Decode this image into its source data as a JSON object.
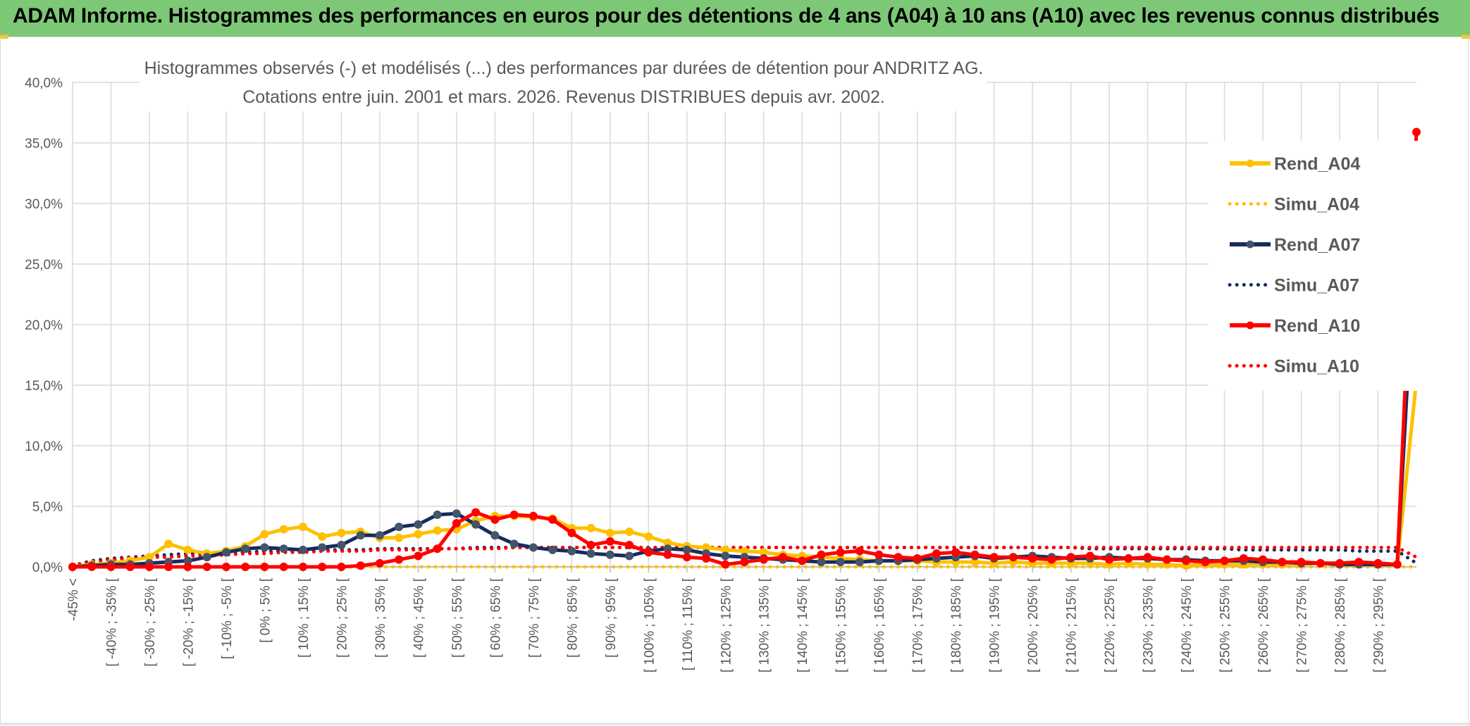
{
  "header": {
    "title": "ADAM Informe. Histogrammes des performances en euros pour des détentions de 4 ans (A04) à 10 ans (A10) avec les revenus connus distribués"
  },
  "chart_data": {
    "type": "line",
    "title_line1": "Histogrammes observés (-) et modélisés (...) des performances par durées de détention pour ANDRITZ AG.",
    "title_line2": "Cotations entre juin. 2001 et mars. 2026. Revenus DISTRIBUES depuis avr. 2002.",
    "ylim": [
      0,
      40
    ],
    "yticks": [
      "0,0%",
      "5,0%",
      "10,0%",
      "15,0%",
      "20,0%",
      "25,0%",
      "30,0%",
      "35,0%",
      "40,0%"
    ],
    "xlabels": [
      "-45% <",
      "[ -40% ; -35% [",
      "[ -30% ; -25% [",
      "[ -20% ; -15% [",
      "[ -10% ; -5% [",
      "[ 0% ; 5% [",
      "[ 10% ; 15% [",
      "[ 20% ; 25% [",
      "[ 30% ; 35% [",
      "[ 40% ; 45% [",
      "[ 50% ; 55% [",
      "[ 60% ; 65% [",
      "[ 70% ; 75% [",
      "[ 80% ; 85% [",
      "[ 90% ; 95% [",
      "[ 100% ; 105% [",
      "[ 110% ; 115% [",
      "[ 120% ; 125% [",
      "[ 130% ; 135% [",
      "[ 140% ; 145% [",
      "[ 150% ; 155% [",
      "[ 160% ; 165% [",
      "[ 170% ; 175% [",
      "[ 180% ; 185% [",
      "[ 190% ; 195% [",
      "[ 200% ; 205% [",
      "[ 210% ; 215% [",
      "[ 220% ; 225% [",
      "[ 230% ; 235% [",
      "[ 240% ; 245% [",
      "[ 250% ; 255% [",
      "[ 260% ; 265% [",
      "[ 270% ; 275% [",
      "[ 280% ; 285% [",
      "[ 290% ; 295% ["
    ],
    "categories_count": 71,
    "legend": [
      "Rend_A04",
      "Simu_A04",
      "Rend_A07",
      "Simu_A07",
      "Rend_A10",
      "Simu_A10"
    ],
    "series": [
      {
        "name": "Rend_A04",
        "style": "solid",
        "markers": true,
        "color": "#ffc000",
        "values": [
          0.0,
          0.2,
          0.3,
          0.5,
          0.8,
          1.9,
          1.4,
          1.1,
          1.3,
          1.7,
          2.7,
          3.1,
          3.3,
          2.5,
          2.8,
          2.9,
          2.4,
          2.4,
          2.7,
          3.0,
          3.1,
          3.8,
          4.2,
          4.2,
          4.1,
          4.0,
          3.2,
          3.2,
          2.8,
          2.9,
          2.5,
          2.0,
          1.7,
          1.6,
          1.4,
          1.3,
          1.2,
          1.0,
          0.9,
          0.8,
          0.7,
          0.6,
          0.5,
          0.5,
          0.5,
          0.4,
          0.4,
          0.4,
          0.3,
          0.4,
          0.3,
          0.3,
          0.3,
          0.3,
          0.2,
          0.3,
          0.2,
          0.2,
          0.1,
          0.2,
          0.2,
          0.2,
          0.2,
          0.2,
          0.2,
          0.3,
          0.2,
          0.3,
          0.3,
          0.2,
          15.4
        ]
      },
      {
        "name": "Simu_A04",
        "style": "dotted",
        "markers": false,
        "color": "#ffc000",
        "values": [
          0.0,
          0.0,
          0.0,
          0.0,
          0.0,
          0.0,
          0.0,
          0.0,
          0.0,
          0.0,
          0.0,
          0.0,
          0.0,
          0.0,
          0.0,
          0.0,
          0.0,
          0.0,
          0.0,
          0.0,
          0.0,
          0.0,
          0.0,
          0.0,
          0.0,
          0.0,
          0.0,
          0.0,
          0.0,
          0.0,
          0.0,
          0.0,
          0.0,
          0.0,
          0.0,
          0.0,
          0.0,
          0.0,
          0.0,
          0.0,
          0.0,
          0.0,
          0.0,
          0.0,
          0.0,
          0.0,
          0.0,
          0.0,
          0.0,
          0.0,
          0.0,
          0.0,
          0.0,
          0.0,
          0.0,
          0.0,
          0.0,
          0.0,
          0.0,
          0.0,
          0.0,
          0.0,
          0.0,
          0.0,
          0.0,
          0.0,
          0.0,
          0.0,
          0.0,
          0.0,
          0.0
        ]
      },
      {
        "name": "Rend_A07",
        "style": "solid",
        "markers": true,
        "color": "#172b5e",
        "values": [
          0.0,
          0.1,
          0.2,
          0.2,
          0.3,
          0.4,
          0.5,
          0.8,
          1.2,
          1.5,
          1.6,
          1.5,
          1.4,
          1.6,
          1.8,
          2.6,
          2.6,
          3.3,
          3.5,
          4.3,
          4.4,
          3.5,
          2.6,
          1.9,
          1.6,
          1.4,
          1.3,
          1.1,
          1.0,
          0.9,
          1.3,
          1.5,
          1.4,
          1.1,
          0.9,
          0.8,
          0.7,
          0.6,
          0.5,
          0.4,
          0.4,
          0.4,
          0.5,
          0.5,
          0.6,
          0.7,
          0.8,
          0.9,
          0.7,
          0.8,
          0.9,
          0.8,
          0.7,
          0.7,
          0.8,
          0.7,
          0.7,
          0.6,
          0.6,
          0.5,
          0.5,
          0.5,
          0.4,
          0.4,
          0.3,
          0.3,
          0.2,
          0.2,
          0.2,
          0.2,
          28.5
        ]
      },
      {
        "name": "Simu_A07",
        "style": "dotted",
        "markers": false,
        "color": "#172b5e",
        "values": [
          0.1,
          0.5,
          0.7,
          0.8,
          0.9,
          1.0,
          1.1,
          1.1,
          1.2,
          1.2,
          1.3,
          1.3,
          1.3,
          1.4,
          1.4,
          1.4,
          1.5,
          1.5,
          1.5,
          1.5,
          1.5,
          1.6,
          1.6,
          1.6,
          1.6,
          1.6,
          1.6,
          1.6,
          1.6,
          1.6,
          1.6,
          1.6,
          1.6,
          1.6,
          1.6,
          1.6,
          1.6,
          1.6,
          1.6,
          1.6,
          1.6,
          1.6,
          1.6,
          1.6,
          1.6,
          1.6,
          1.6,
          1.6,
          1.6,
          1.6,
          1.6,
          1.6,
          1.6,
          1.5,
          1.5,
          1.5,
          1.5,
          1.5,
          1.5,
          1.5,
          1.5,
          1.4,
          1.4,
          1.4,
          1.4,
          1.4,
          1.4,
          1.3,
          1.3,
          1.3,
          0.3
        ]
      },
      {
        "name": "Rend_A10",
        "style": "solid",
        "markers": true,
        "color": "#ff0000",
        "values": [
          0.0,
          0.0,
          0.0,
          0.0,
          0.0,
          0.0,
          0.0,
          0.0,
          0.0,
          0.0,
          0.0,
          0.0,
          0.0,
          0.0,
          0.0,
          0.1,
          0.3,
          0.6,
          0.9,
          1.5,
          3.6,
          4.5,
          3.9,
          4.3,
          4.2,
          3.9,
          2.8,
          1.8,
          2.1,
          1.8,
          1.2,
          1.0,
          0.8,
          0.7,
          0.2,
          0.4,
          0.6,
          0.8,
          0.5,
          1.0,
          1.2,
          1.3,
          1.0,
          0.8,
          0.7,
          1.1,
          1.2,
          1.0,
          0.8,
          0.8,
          0.7,
          0.6,
          0.8,
          0.9,
          0.6,
          0.7,
          0.8,
          0.6,
          0.5,
          0.4,
          0.5,
          0.7,
          0.6,
          0.4,
          0.4,
          0.3,
          0.3,
          0.4,
          0.3,
          0.2,
          35.9
        ]
      },
      {
        "name": "Simu_A10",
        "style": "dotted",
        "markers": false,
        "color": "#ff0000",
        "values": [
          0.1,
          0.4,
          0.6,
          0.7,
          0.8,
          0.8,
          0.9,
          0.9,
          1.0,
          1.1,
          1.1,
          1.2,
          1.2,
          1.3,
          1.3,
          1.3,
          1.4,
          1.4,
          1.4,
          1.5,
          1.5,
          1.5,
          1.5,
          1.6,
          1.6,
          1.6,
          1.6,
          1.6,
          1.6,
          1.6,
          1.6,
          1.6,
          1.6,
          1.6,
          1.6,
          1.6,
          1.6,
          1.6,
          1.6,
          1.6,
          1.6,
          1.6,
          1.6,
          1.6,
          1.6,
          1.6,
          1.6,
          1.6,
          1.6,
          1.6,
          1.6,
          1.6,
          1.6,
          1.6,
          1.6,
          1.6,
          1.6,
          1.6,
          1.6,
          1.6,
          1.6,
          1.6,
          1.6,
          1.6,
          1.6,
          1.6,
          1.6,
          1.6,
          1.6,
          1.6,
          0.8
        ]
      }
    ],
    "xlabel": "",
    "ylabel": "",
    "legend_position": "right"
  }
}
